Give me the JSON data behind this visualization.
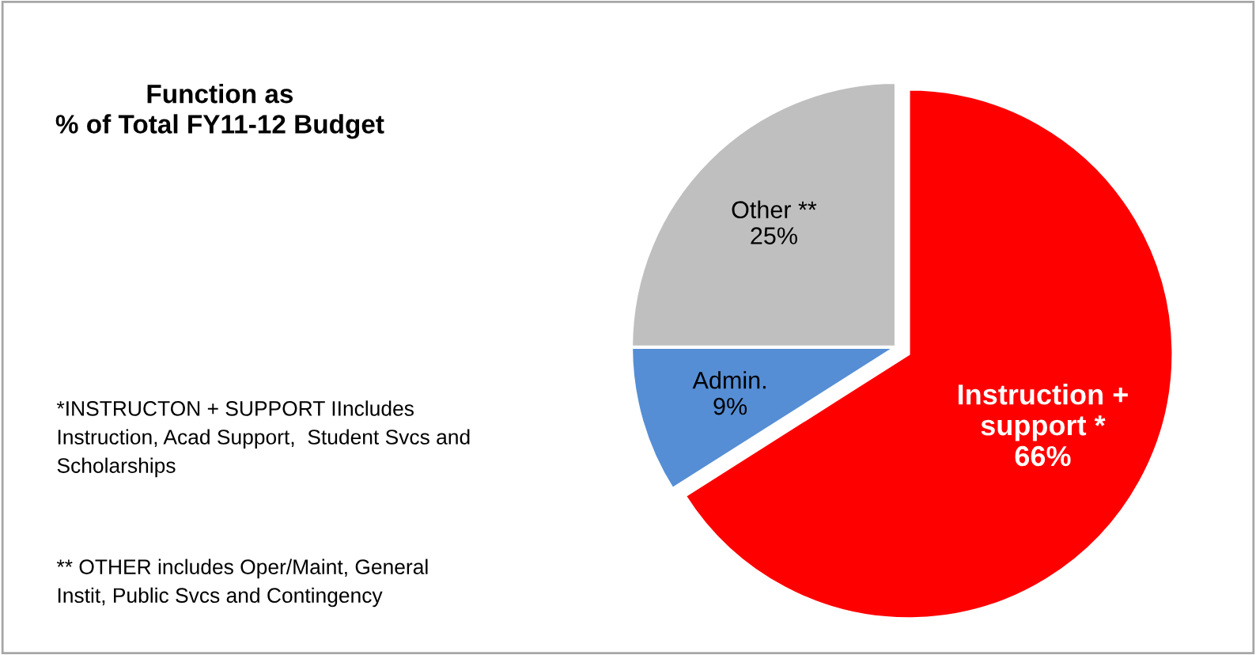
{
  "chart_data": {
    "type": "pie",
    "title": "Function as\n% of Total FY11-12 Budget",
    "categories": [
      "Instruction +\nsupport *",
      "Admin.",
      "Other **"
    ],
    "values": [
      66,
      9,
      25
    ],
    "colors": [
      "#ff0000",
      "#558ed5",
      "#bfbfbf"
    ],
    "value_labels": [
      "66%",
      "9%",
      "25%"
    ],
    "annotations": [
      "*INSTRUCTON + SUPPORT IIncludes\nInstruction, Acad Support,  Student Svcs and\nScholarships",
      "** OTHER includes Oper/Maint, General\nInstit, Public Svcs and Contingency"
    ]
  }
}
